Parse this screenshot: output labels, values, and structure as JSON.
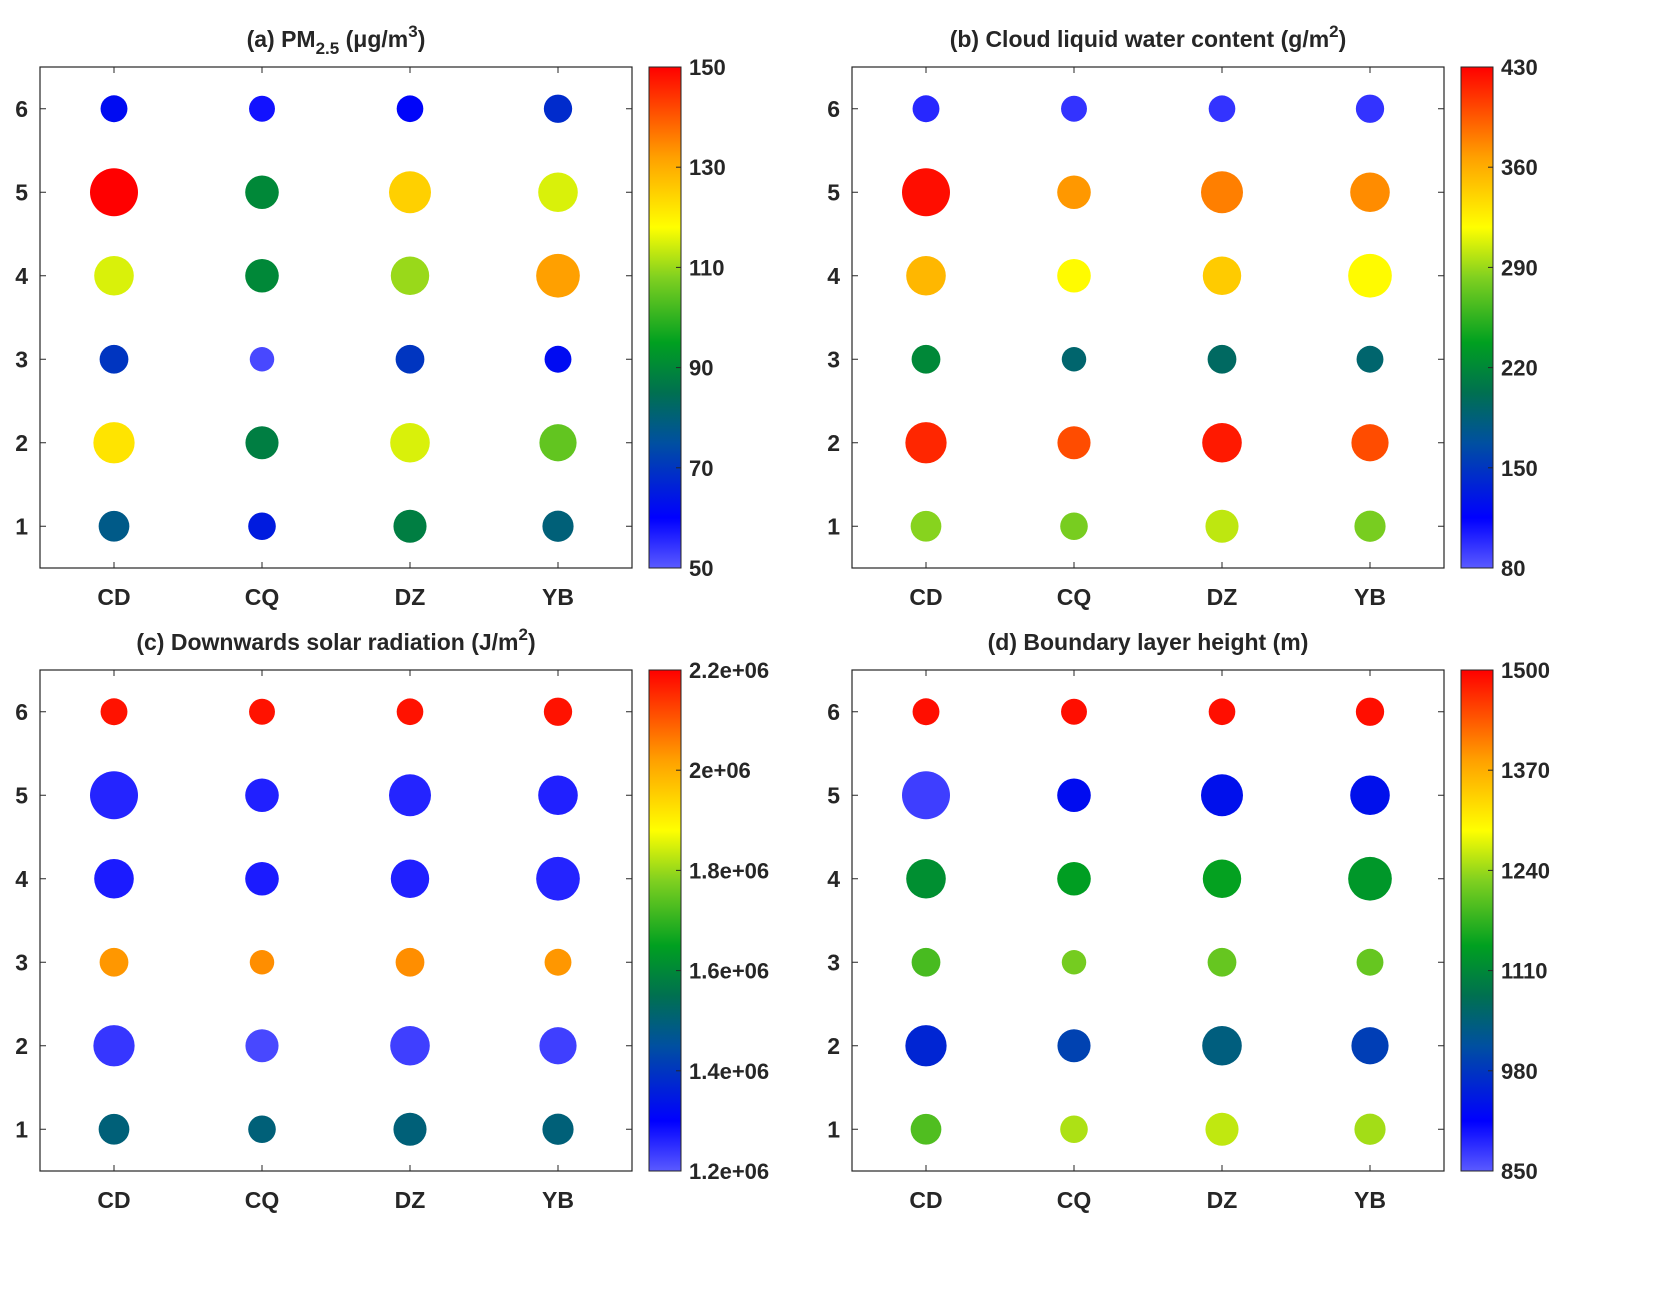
{
  "chart_data": [
    {
      "type": "scatter",
      "title_parts": {
        "pre": "(a) PM",
        "sub": "2.5",
        "mid": " (μg/m",
        "sup": "3",
        "post": ")"
      },
      "categories": [
        "CD",
        "CQ",
        "DZ",
        "YB"
      ],
      "yticks": [
        "1",
        "2",
        "3",
        "4",
        "5",
        "6"
      ],
      "clim": [
        50,
        150
      ],
      "colorbar_ticks": [
        "50",
        "70",
        "90",
        "110",
        "130",
        "150"
      ],
      "values": {
        "1": [
          78,
          65,
          88,
          80
        ],
        "2": [
          122,
          88,
          115,
          105
        ],
        "3": [
          70,
          52,
          70,
          62
        ],
        "4": [
          115,
          90,
          110,
          132
        ],
        "5": [
          150,
          90,
          125,
          115
        ],
        "6": [
          62,
          58,
          61,
          68
        ]
      }
    },
    {
      "type": "scatter",
      "title_parts": {
        "pre": "(b) Cloud liquid water content (g/m",
        "sub": "",
        "mid": "",
        "sup": "2",
        "post": ")"
      },
      "categories": [
        "CD",
        "CQ",
        "DZ",
        "YB"
      ],
      "yticks": [
        "1",
        "2",
        "3",
        "4",
        "5",
        "6"
      ],
      "clim": [
        80,
        430
      ],
      "colorbar_ticks": [
        "80",
        "150",
        "220",
        "290",
        "360",
        "430"
      ],
      "values": {
        "1": [
          285,
          280,
          300,
          280
        ],
        "2": [
          415,
          400,
          420,
          400
        ],
        "3": [
          220,
          190,
          195,
          190
        ],
        "4": [
          355,
          320,
          345,
          320
        ],
        "5": [
          425,
          370,
          380,
          375
        ],
        "6": [
          100,
          95,
          95,
          95
        ]
      }
    },
    {
      "type": "scatter",
      "title_parts": {
        "pre": "(c) Downwards solar radiation (J/m",
        "sub": "",
        "mid": "",
        "sup": "2",
        "post": ")"
      },
      "categories": [
        "CD",
        "CQ",
        "DZ",
        "YB"
      ],
      "yticks": [
        "1",
        "2",
        "3",
        "4",
        "5",
        "6"
      ],
      "clim": [
        1200000,
        2200000
      ],
      "colorbar_ticks": [
        "1.2e+06",
        "1.4e+06",
        "1.6e+06",
        "1.8e+06",
        "2e+06",
        "2.2e+06"
      ],
      "values": {
        "1": [
          1500000,
          1500000,
          1500000,
          1500000
        ],
        "2": [
          1240000,
          1220000,
          1230000,
          1230000
        ],
        "3": [
          2030000,
          2040000,
          2040000,
          2030000
        ],
        "4": [
          1270000,
          1270000,
          1265000,
          1260000
        ],
        "5": [
          1260000,
          1265000,
          1260000,
          1265000
        ],
        "6": [
          2180000,
          2180000,
          2180000,
          2180000
        ]
      }
    },
    {
      "type": "scatter",
      "title_parts": {
        "pre": "(d) Boundary layer height (m)",
        "sub": "",
        "mid": "",
        "sup": "",
        "post": ""
      },
      "categories": [
        "CD",
        "CQ",
        "DZ",
        "YB"
      ],
      "yticks": [
        "1",
        "2",
        "3",
        "4",
        "5",
        "6"
      ],
      "clim": [
        850,
        1500
      ],
      "colorbar_ticks": [
        "850",
        "980",
        "1110",
        "1240",
        "1370",
        "1500"
      ],
      "values": {
        "1": [
          1195,
          1250,
          1260,
          1245
        ],
        "2": [
          960,
          995,
          1040,
          990
        ],
        "3": [
          1190,
          1220,
          1210,
          1210
        ],
        "4": [
          1120,
          1140,
          1145,
          1130
        ],
        "5": [
          870,
          930,
          935,
          935
        ],
        "6": [
          1490,
          1490,
          1490,
          1490
        ]
      }
    }
  ],
  "bubble_size_variable": "PM2.5",
  "colormap": [
    "#5a5aff",
    "#0000ff",
    "#0050a0",
    "#007050",
    "#00a020",
    "#80d020",
    "#ffff00",
    "#ffa000",
    "#ff0000"
  ]
}
